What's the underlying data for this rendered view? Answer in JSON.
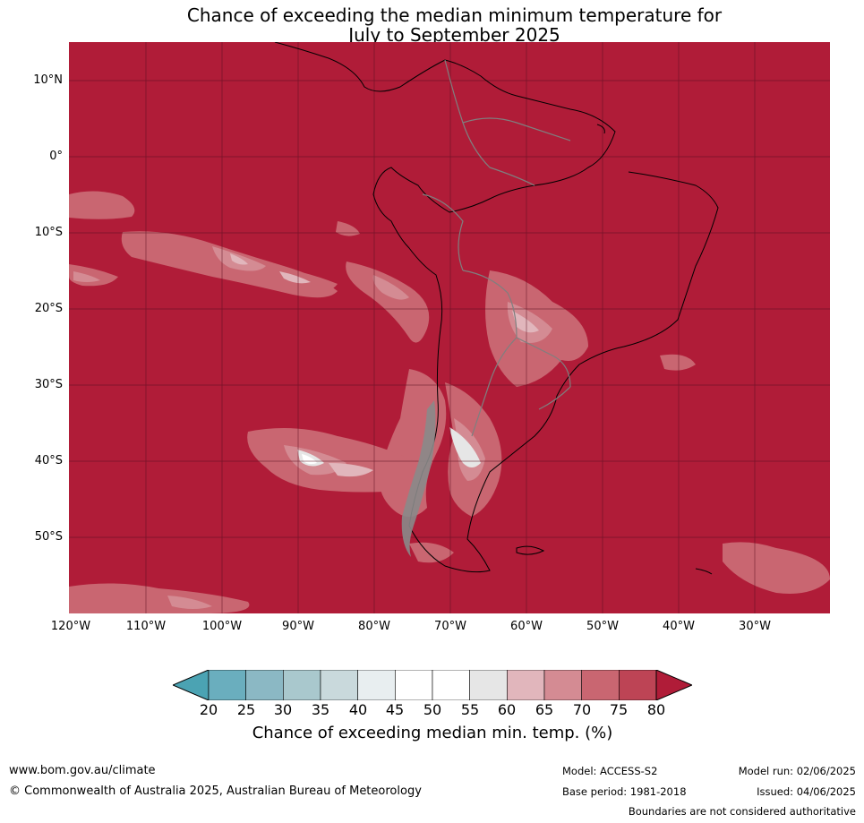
{
  "title_line1": "Chance of exceeding the median minimum temperature for",
  "title_line2": "July to September 2025",
  "lat_labels": [
    "10°N",
    "0°",
    "10°S",
    "20°S",
    "30°S",
    "40°S",
    "50°S"
  ],
  "lon_labels": [
    "120°W",
    "110°W",
    "100°W",
    "90°W",
    "80°W",
    "70°W",
    "60°W",
    "50°W",
    "40°W",
    "30°W"
  ],
  "colorbar": {
    "title": "Chance of exceeding median min. temp. (%)",
    "ticks": [
      "20",
      "25",
      "30",
      "35",
      "40",
      "45",
      "50",
      "55",
      "60",
      "65",
      "70",
      "75",
      "80"
    ],
    "colors": [
      "#6aaebe",
      "#8bb8c4",
      "#a9c8cd",
      "#c9d9dc",
      "#e8eef0",
      "#ffffff",
      "#ffffff",
      "#e6e6e6",
      "#e1b6bc",
      "#d48b93",
      "#c96671",
      "#bd4455"
    ],
    "under_color": "#4ba3b3",
    "over_color": "#b01c38"
  },
  "map_colors": {
    "dominant": "#b01c38",
    "level_75": "#bd4455",
    "level_70": "#c96671",
    "level_65": "#d48b93",
    "level_60": "#e1b6bc",
    "level_55": "#e6e6e6",
    "level_50": "#ffffff",
    "coast": "#000000",
    "borders": "#7f7f7f",
    "grid": "#5a1020"
  },
  "footer": {
    "website": "www.bom.gov.au/climate",
    "copyright": "© Commonwealth of Australia 2025, Australian Bureau of Meteorology",
    "model": "Model: ACCESS-S2",
    "base_period": "Base period: 1981-2018",
    "model_run": "Model run: 02/06/2025",
    "issued": "Issued: 04/06/2025",
    "disclaimer": "Boundaries are not considered authoritative"
  }
}
